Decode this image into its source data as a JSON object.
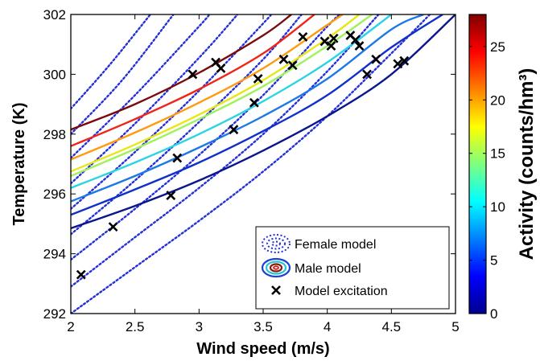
{
  "chart_data": {
    "type": "line",
    "xlabel": "Wind speed (m/s)",
    "ylabel": "Temperature (K)",
    "xlim": [
      2,
      5
    ],
    "ylim": [
      292,
      302
    ],
    "xticks": [
      "2",
      "2.5",
      "3",
      "3.5",
      "4",
      "4.5",
      "5"
    ],
    "xtick_values": [
      2,
      2.5,
      3,
      3.5,
      4,
      4.5,
      5
    ],
    "yticks": [
      "292",
      "294",
      "296",
      "298",
      "300",
      "302"
    ],
    "ytick_values": [
      292,
      294,
      296,
      298,
      300,
      302
    ],
    "grid": false,
    "legend_position": "bottom-right",
    "legend": [
      {
        "label": "Female model",
        "marker": "dotted-ellipse"
      },
      {
        "label": "Male model",
        "marker": "solid-ellipse"
      },
      {
        "label": "Model excitation",
        "marker": "x"
      }
    ],
    "colorbar": {
      "label": "Activity (counts/hm³)",
      "range": [
        0,
        28
      ],
      "ticks": [
        "0",
        "5",
        "10",
        "15",
        "20",
        "25"
      ],
      "tick_values": [
        0,
        5,
        10,
        15,
        20,
        25
      ],
      "colormap": "jet"
    },
    "male_contours": [
      {
        "level": 3,
        "color": "#0a168c",
        "points": [
          [
            2,
            294.85
          ],
          [
            2.5,
            295.6
          ],
          [
            3,
            296.45
          ],
          [
            3.5,
            297.45
          ],
          [
            4,
            298.6
          ],
          [
            4.5,
            300.0
          ],
          [
            5,
            302.0
          ]
        ]
      },
      {
        "level": 6,
        "color": "#1030c8",
        "points": [
          [
            2,
            295.3
          ],
          [
            2.5,
            296.15
          ],
          [
            3,
            297.05
          ],
          [
            3.5,
            298.1
          ],
          [
            4,
            299.3
          ],
          [
            4.5,
            300.9
          ],
          [
            4.9,
            302.0
          ]
        ]
      },
      {
        "level": 9,
        "color": "#1c78e6",
        "points": [
          [
            2,
            295.75
          ],
          [
            2.5,
            296.6
          ],
          [
            3,
            297.55
          ],
          [
            3.5,
            298.6
          ],
          [
            4,
            299.85
          ],
          [
            4.5,
            301.5
          ],
          [
            4.75,
            302.0
          ]
        ]
      },
      {
        "level": 12,
        "color": "#2ad4e4",
        "points": [
          [
            2,
            296.2
          ],
          [
            2.5,
            297.05
          ],
          [
            3,
            298.0
          ],
          [
            3.5,
            299.1
          ],
          [
            4,
            300.4
          ],
          [
            4.5,
            302.0
          ]
        ]
      },
      {
        "level": 15,
        "color": "#9ef25a",
        "points": [
          [
            2,
            296.6
          ],
          [
            2.5,
            297.5
          ],
          [
            3,
            298.5
          ],
          [
            3.5,
            299.6
          ],
          [
            4,
            300.95
          ],
          [
            4.35,
            302.0
          ]
        ]
      },
      {
        "level": 18,
        "color": "#e8e614",
        "points": [
          [
            2,
            296.75
          ],
          [
            2.5,
            297.65
          ],
          [
            3,
            298.65
          ],
          [
            3.5,
            299.8
          ],
          [
            4,
            301.2
          ],
          [
            4.25,
            302.0
          ]
        ]
      },
      {
        "level": 21,
        "color": "#ff9a10",
        "points": [
          [
            2,
            297.15
          ],
          [
            2.5,
            298.05
          ],
          [
            3,
            299.05
          ],
          [
            3.5,
            300.2
          ],
          [
            4,
            301.65
          ],
          [
            4.12,
            302.0
          ]
        ]
      },
      {
        "level": 24,
        "color": "#f02418",
        "points": [
          [
            2,
            297.6
          ],
          [
            2.5,
            298.5
          ],
          [
            3,
            299.5
          ],
          [
            3.5,
            300.7
          ],
          [
            3.9,
            302.0
          ]
        ]
      },
      {
        "level": 27,
        "color": "#7a0a0c",
        "points": [
          [
            2,
            298.15
          ],
          [
            2.5,
            299.0
          ],
          [
            3,
            300.05
          ],
          [
            3.5,
            301.3
          ],
          [
            3.72,
            302.0
          ]
        ]
      }
    ],
    "female_contours": [
      {
        "points": [
          [
            2,
            292.0
          ],
          [
            2.5,
            293.55
          ],
          [
            3,
            295.1
          ],
          [
            3.5,
            296.75
          ],
          [
            4,
            298.6
          ],
          [
            4.5,
            300.7
          ],
          [
            4.8,
            302.0
          ]
        ]
      },
      {
        "points": [
          [
            2,
            292.9
          ],
          [
            2.5,
            294.55
          ],
          [
            3,
            296.2
          ],
          [
            3.5,
            298.0
          ],
          [
            4,
            300.1
          ],
          [
            4.4,
            302.0
          ]
        ]
      },
      {
        "points": [
          [
            2,
            293.8
          ],
          [
            2.5,
            295.5
          ],
          [
            3,
            297.3
          ],
          [
            3.5,
            299.3
          ],
          [
            4,
            301.6
          ],
          [
            4.1,
            302.0
          ]
        ]
      },
      {
        "points": [
          [
            2,
            294.65
          ],
          [
            2.5,
            296.45
          ],
          [
            3,
            298.4
          ],
          [
            3.5,
            300.5
          ],
          [
            3.8,
            302.0
          ]
        ]
      },
      {
        "points": [
          [
            2,
            295.5
          ],
          [
            2.5,
            297.4
          ],
          [
            3,
            299.45
          ],
          [
            3.5,
            301.7
          ],
          [
            3.56,
            302.0
          ]
        ]
      },
      {
        "points": [
          [
            2,
            296.35
          ],
          [
            2.5,
            298.35
          ],
          [
            3,
            300.55
          ],
          [
            3.3,
            302.0
          ]
        ]
      },
      {
        "points": [
          [
            2,
            297.2
          ],
          [
            2.5,
            299.3
          ],
          [
            3,
            301.6
          ],
          [
            3.08,
            302.0
          ]
        ]
      },
      {
        "points": [
          [
            2,
            298.0
          ],
          [
            2.4,
            299.8
          ],
          [
            2.8,
            302.0
          ]
        ]
      },
      {
        "points": [
          [
            2,
            298.85
          ],
          [
            2.3,
            300.3
          ],
          [
            2.62,
            302.0
          ]
        ]
      }
    ],
    "excitation_points": [
      [
        2.08,
        293.3
      ],
      [
        2.33,
        294.9
      ],
      [
        2.78,
        295.95
      ],
      [
        2.83,
        297.2
      ],
      [
        2.95,
        300.0
      ],
      [
        3.13,
        300.4
      ],
      [
        3.17,
        300.2
      ],
      [
        3.27,
        298.15
      ],
      [
        3.43,
        299.05
      ],
      [
        3.46,
        299.85
      ],
      [
        3.66,
        300.5
      ],
      [
        3.73,
        300.3
      ],
      [
        3.81,
        301.25
      ],
      [
        3.98,
        301.1
      ],
      [
        4.03,
        300.95
      ],
      [
        4.05,
        301.2
      ],
      [
        4.18,
        301.3
      ],
      [
        4.22,
        301.15
      ],
      [
        4.25,
        300.95
      ],
      [
        4.31,
        300.0
      ],
      [
        4.38,
        300.5
      ],
      [
        4.55,
        300.35
      ],
      [
        4.6,
        300.45
      ]
    ]
  }
}
